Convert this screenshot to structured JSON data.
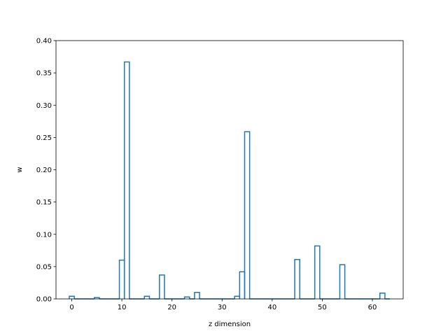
{
  "chart_data": {
    "type": "bar",
    "style": "step-histogram",
    "xlabel": "z dimension",
    "ylabel": "w",
    "xlim": [
      -3.15,
      66.15
    ],
    "ylim": [
      0.0,
      0.4
    ],
    "xticks": [
      0,
      10,
      20,
      30,
      40,
      50,
      60
    ],
    "yticks": [
      0.0,
      0.05,
      0.1,
      0.15,
      0.2,
      0.25,
      0.3,
      0.35,
      0.4
    ],
    "ytick_format": "2dp",
    "grid": false,
    "legend": "none",
    "line_color": "#1f77b4",
    "x": [
      0,
      1,
      2,
      3,
      4,
      5,
      6,
      7,
      8,
      9,
      10,
      11,
      12,
      13,
      14,
      15,
      16,
      17,
      18,
      19,
      20,
      21,
      22,
      23,
      24,
      25,
      26,
      27,
      28,
      29,
      30,
      31,
      32,
      33,
      34,
      35,
      36,
      37,
      38,
      39,
      40,
      41,
      42,
      43,
      44,
      45,
      46,
      47,
      48,
      49,
      50,
      51,
      52,
      53,
      54,
      55,
      56,
      57,
      58,
      59,
      60,
      61,
      62,
      63
    ],
    "values": [
      0.004,
      0,
      0,
      0,
      0,
      0.002,
      0,
      0,
      0,
      0,
      0.06,
      0.367,
      0,
      0,
      0,
      0.004,
      0,
      0,
      0.037,
      0,
      0,
      0,
      0,
      0.003,
      0,
      0.01,
      0,
      0,
      0,
      0,
      0,
      0,
      0,
      0.004,
      0.042,
      0.259,
      0,
      0,
      0,
      0,
      0,
      0,
      0,
      0,
      0,
      0.061,
      0,
      0,
      0,
      0.082,
      0,
      0,
      0,
      0,
      0.053,
      0,
      0,
      0,
      0,
      0,
      0,
      0,
      0.009,
      0
    ]
  }
}
